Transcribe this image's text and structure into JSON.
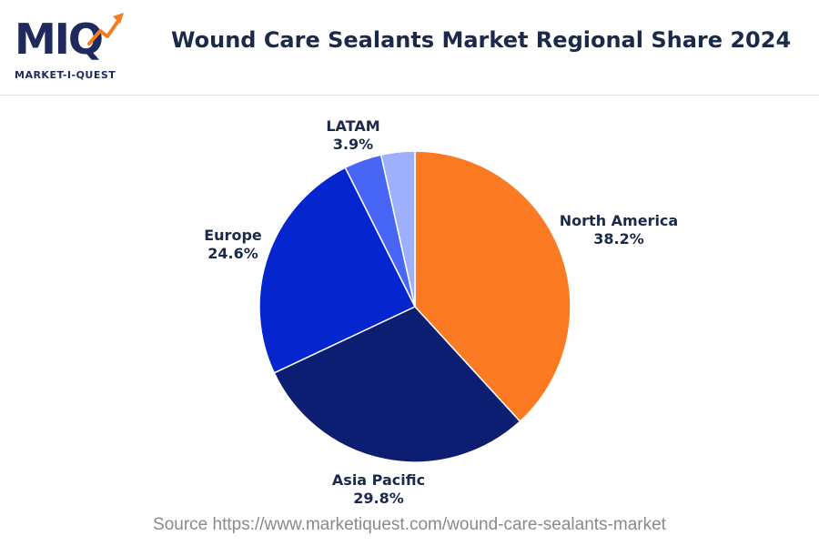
{
  "logo": {
    "wordmark": "MIQ",
    "subtitle": "MARKET-I-QUEST"
  },
  "title": "Wound Care Sealants Market Regional Share 2024",
  "source": "Source https://www.marketiquest.com/wound-care-sealants-market",
  "chart_data": {
    "type": "pie",
    "title": "Wound Care Sealants Market Regional Share 2024",
    "unit": "%",
    "slices": [
      {
        "label": "North America",
        "value": 38.2,
        "display": "38.2%",
        "color": "#fc7a22"
      },
      {
        "label": "Asia Pacific",
        "value": 29.8,
        "display": "29.8%",
        "color": "#0c1e72"
      },
      {
        "label": "Europe",
        "value": 24.6,
        "display": "24.6%",
        "color": "#0525cf"
      },
      {
        "label": "LATAM",
        "value": 3.9,
        "display": "3.9%",
        "color": "#4866f5"
      },
      {
        "label": "",
        "value": 3.5,
        "display": "",
        "color": "#9eb0fb"
      }
    ],
    "start_angle": "12 o'clock",
    "direction": "clockwise",
    "legend": "none"
  }
}
